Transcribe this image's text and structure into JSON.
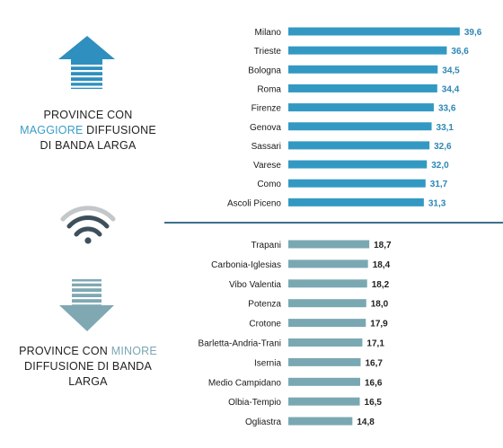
{
  "top_panel": {
    "line1": "PROVINCE CON",
    "accent": "MAGGIORE",
    "line2_rest": " DIFFUSIONE",
    "line3": "DI BANDA LARGA"
  },
  "bottom_panel": {
    "line1_prefix": "PROVINCE CON ",
    "accent": "MINORE",
    "line2": "DIFFUSIONE DI BANDA",
    "line3": "LARGA"
  },
  "colors": {
    "top_bars": "#3399c3",
    "top_labels": "#2e86b5",
    "bottom_bars": "#7aa8b2",
    "bottom_labels": "#222222",
    "divider": "#3d6f8e"
  },
  "icons": {
    "top": "arrow-up-icon",
    "middle": "wifi-icon",
    "bottom": "arrow-down-icon"
  },
  "chart_data": [
    {
      "type": "bar",
      "orientation": "horizontal",
      "categories": [
        "Milano",
        "Trieste",
        "Bologna",
        "Roma",
        "Firenze",
        "Genova",
        "Sassari",
        "Varese",
        "Como",
        "Ascoli Piceno"
      ],
      "values": [
        39.6,
        36.6,
        34.5,
        34.4,
        33.6,
        33.1,
        32.6,
        32.0,
        31.7,
        31.3
      ],
      "labels": [
        "39,6",
        "36,6",
        "34,5",
        "34,4",
        "33,6",
        "33,1",
        "32,6",
        "32,0",
        "31,7",
        "31,3"
      ],
      "xlim": [
        0,
        40
      ]
    },
    {
      "type": "bar",
      "orientation": "horizontal",
      "categories": [
        "Trapani",
        "Carbonia-Iglesias",
        "Vibo Valentia",
        "Potenza",
        "Crotone",
        "Barletta-Andria-Trani",
        "Isernia",
        "Medio Campidano",
        "Olbia-Tempio",
        "Ogliastra"
      ],
      "values": [
        18.7,
        18.4,
        18.2,
        18.0,
        17.9,
        17.1,
        16.7,
        16.6,
        16.5,
        14.8
      ],
      "labels": [
        "18,7",
        "18,4",
        "18,2",
        "18,0",
        "17,9",
        "17,1",
        "16,7",
        "16,6",
        "16,5",
        "14,8"
      ],
      "xlim": [
        0,
        40
      ]
    }
  ]
}
